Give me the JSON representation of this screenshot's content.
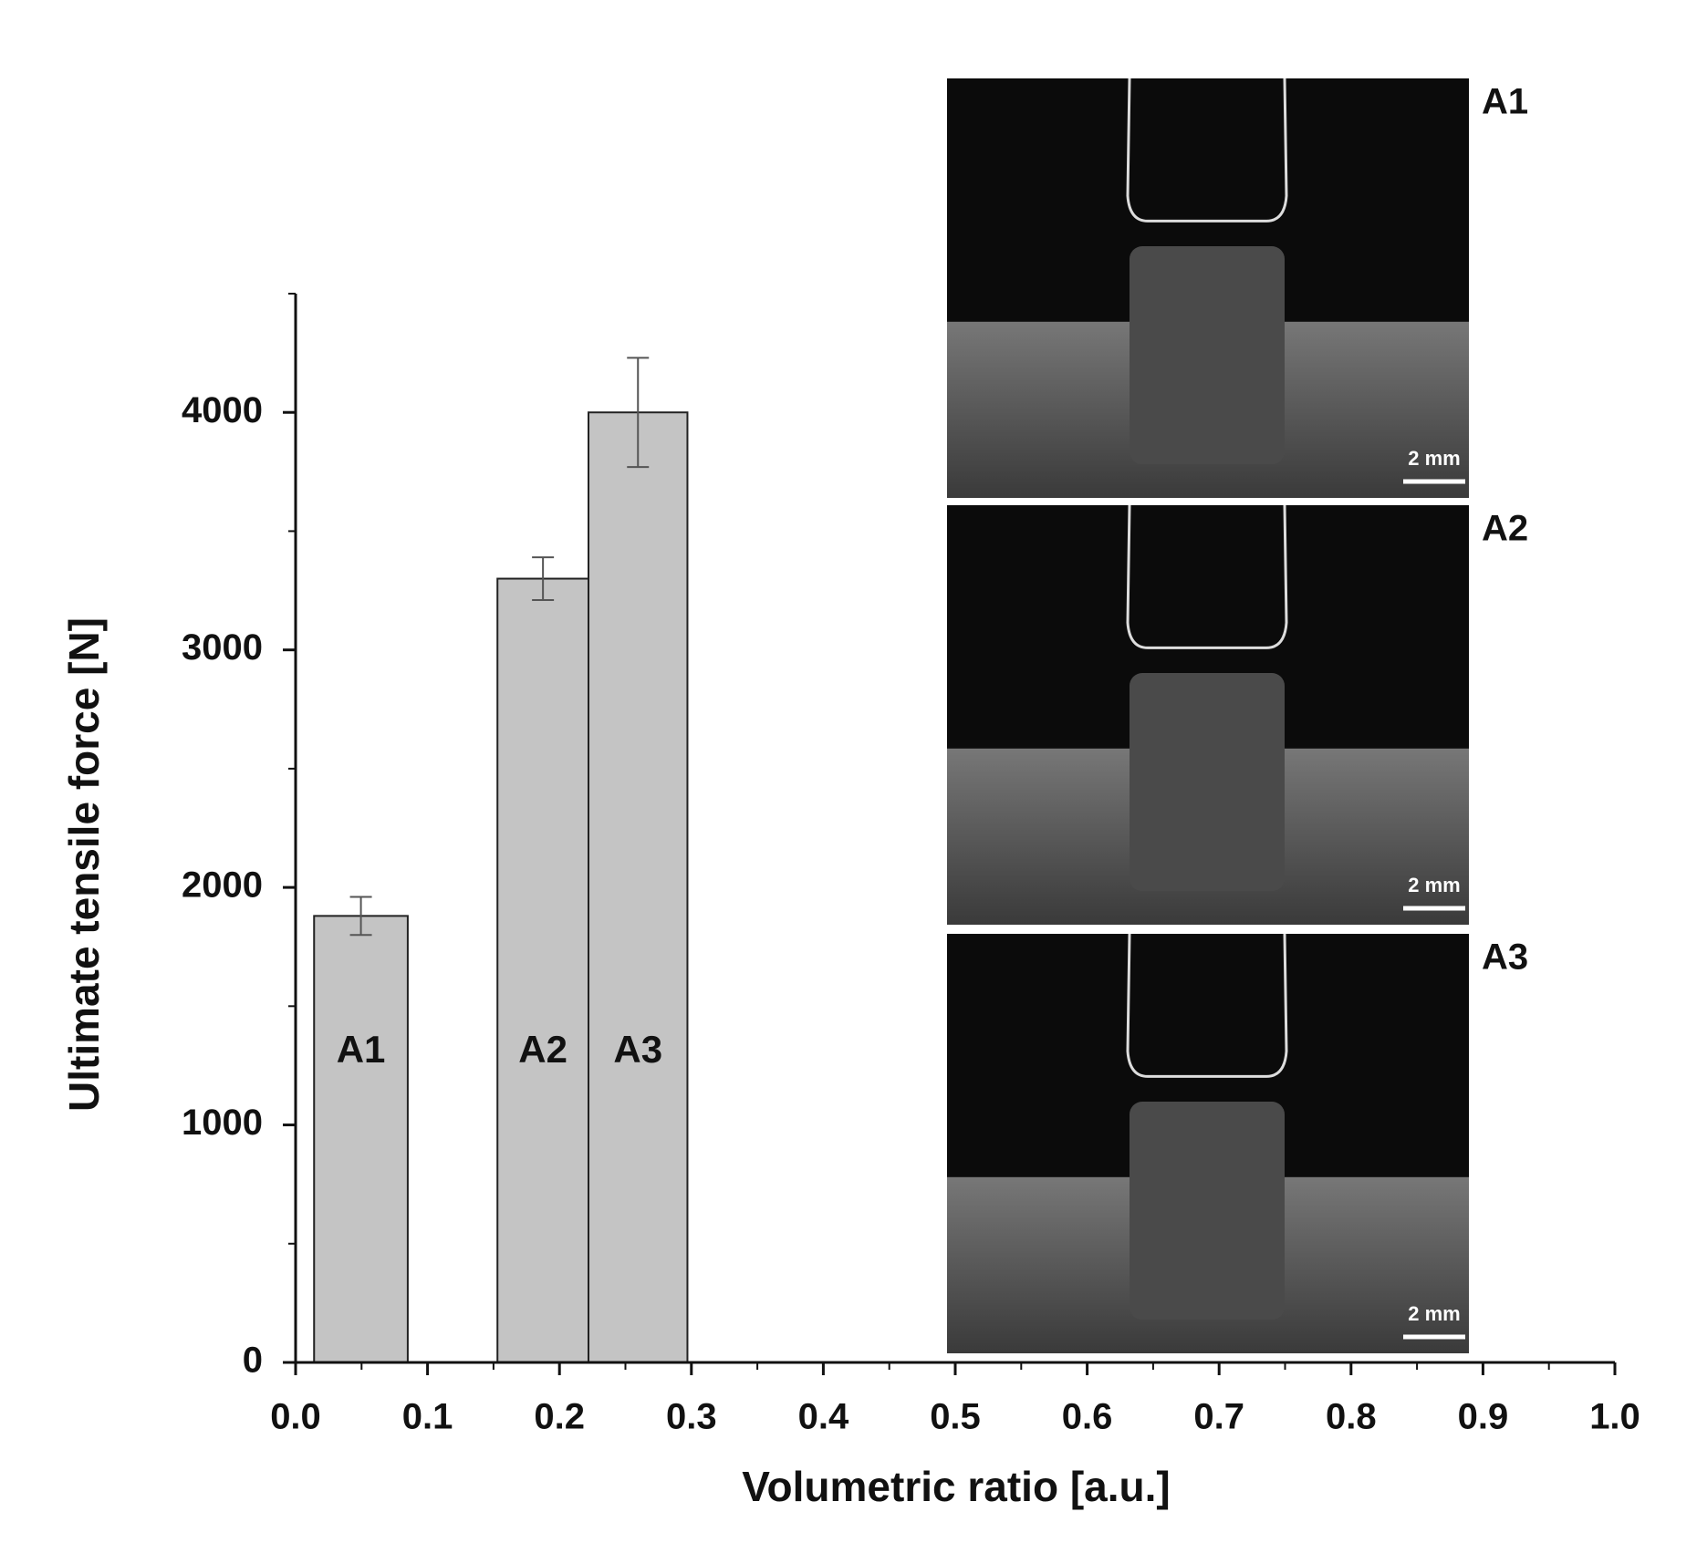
{
  "chart_data": {
    "type": "bar",
    "xlabel": "Volumetric ratio [a.u.]",
    "ylabel": "Ultimate tensile force [N]",
    "color": "#c4c4c4",
    "bars": [
      {
        "label": "A1",
        "x0": 0.014,
        "x1": 0.085,
        "value": 1880,
        "error": 80
      },
      {
        "label": "A2",
        "x0": 0.153,
        "x1": 0.222,
        "value": 3300,
        "error": 90
      },
      {
        "label": "A3",
        "x0": 0.222,
        "x1": 0.297,
        "value": 4000,
        "error": 230
      }
    ],
    "xlim": [
      0,
      1
    ],
    "xticks": [
      {
        "value": 0,
        "label": "0.0"
      },
      0.1,
      0.2,
      0.3,
      0.4,
      0.5,
      0.6,
      0.7,
      0.8,
      0.9,
      {
        "value": 1,
        "label": "1.0"
      }
    ],
    "xminorticks": [
      0.05,
      0.15,
      0.25,
      0.35,
      0.45,
      0.55,
      0.65,
      0.75,
      0.85,
      0.95
    ],
    "ylim": [
      0,
      4500
    ],
    "yticks": [
      0,
      1000,
      2000,
      3000,
      4000
    ],
    "yminorticks": [
      500,
      1500,
      2500,
      3500,
      4500
    ],
    "insets": [
      {
        "label": "A1",
        "scale": "2 mm"
      },
      {
        "label": "A2",
        "scale": "2 mm"
      },
      {
        "label": "A3",
        "scale": "2 mm"
      }
    ]
  }
}
